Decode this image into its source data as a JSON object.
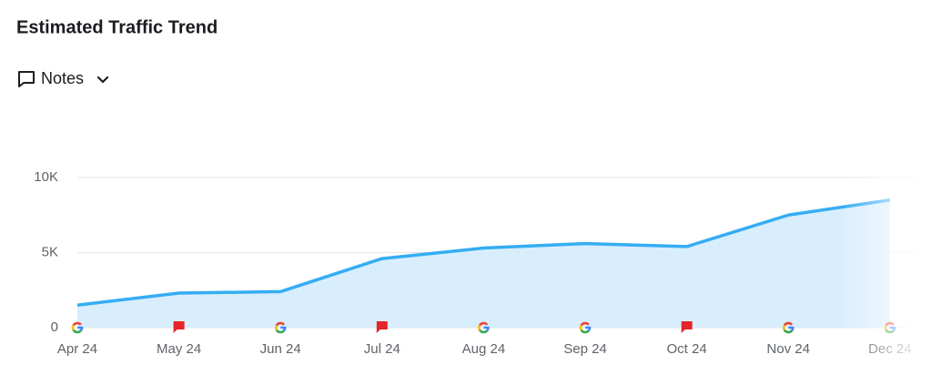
{
  "header": {
    "notes": "Notes"
  },
  "chart_data": {
    "type": "area",
    "title": "Estimated Traffic Trend",
    "categories": [
      "Apr 24",
      "May 24",
      "Jun 24",
      "Jul 24",
      "Aug 24",
      "Sep 24",
      "Oct 24",
      "Nov 24",
      "Dec 24"
    ],
    "values": [
      1500,
      2300,
      2400,
      4600,
      5300,
      5600,
      5400,
      7500,
      8500
    ],
    "color": "#35adf3",
    "fill": "#d9eefd",
    "markers": [
      "google",
      "flag",
      "google",
      "flag",
      "google",
      "google",
      "flag",
      "google",
      "google"
    ],
    "ylim": [
      0,
      10000
    ],
    "yticks": [
      0,
      {
        "value": 5000,
        "label": "5K"
      },
      {
        "value": 10000,
        "label": "10K"
      }
    ],
    "grid": true
  }
}
